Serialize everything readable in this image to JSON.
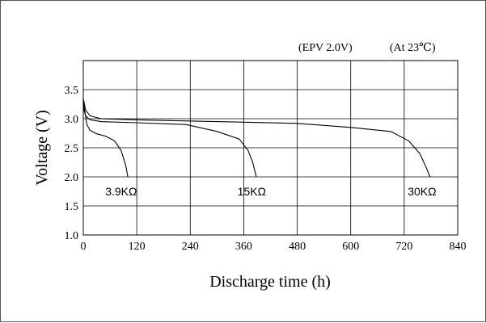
{
  "chart_data": {
    "type": "line",
    "annotations": {
      "epv": "(EPV 2.0V)",
      "temp": "(At 23℃)"
    },
    "xlabel": "Discharge time (h)",
    "ylabel": "Voltage (V)",
    "xlim": [
      0,
      840
    ],
    "ylim": [
      1.0,
      4.0
    ],
    "xticks": [
      "0",
      "120",
      "240",
      "360",
      "480",
      "600",
      "720",
      "840"
    ],
    "yticks": [
      "1.0",
      "1.5",
      "2.0",
      "2.5",
      "3.0",
      "3.5"
    ],
    "grid": true,
    "series": [
      {
        "name": "3.9KΩ",
        "points": [
          [
            0,
            3.3
          ],
          [
            4,
            3.1
          ],
          [
            8,
            2.9
          ],
          [
            15,
            2.8
          ],
          [
            30,
            2.74
          ],
          [
            50,
            2.7
          ],
          [
            70,
            2.62
          ],
          [
            85,
            2.45
          ],
          [
            95,
            2.2
          ],
          [
            100,
            2.0
          ]
        ],
        "label_at": [
          85,
          1.75
        ]
      },
      {
        "name": "15KΩ",
        "points": [
          [
            0,
            3.2
          ],
          [
            5,
            3.05
          ],
          [
            15,
            2.98
          ],
          [
            40,
            2.95
          ],
          [
            120,
            2.93
          ],
          [
            230,
            2.9
          ],
          [
            300,
            2.78
          ],
          [
            350,
            2.65
          ],
          [
            370,
            2.45
          ],
          [
            380,
            2.25
          ],
          [
            388,
            2.0
          ]
        ],
        "label_at": [
          378,
          1.75
        ]
      },
      {
        "name": "30KΩ",
        "points": [
          [
            0,
            3.35
          ],
          [
            5,
            3.15
          ],
          [
            15,
            3.05
          ],
          [
            40,
            3.0
          ],
          [
            120,
            2.98
          ],
          [
            300,
            2.95
          ],
          [
            480,
            2.92
          ],
          [
            600,
            2.85
          ],
          [
            690,
            2.78
          ],
          [
            730,
            2.62
          ],
          [
            755,
            2.4
          ],
          [
            770,
            2.15
          ],
          [
            778,
            2.0
          ]
        ],
        "label_at": [
          760,
          1.75
        ]
      }
    ]
  }
}
